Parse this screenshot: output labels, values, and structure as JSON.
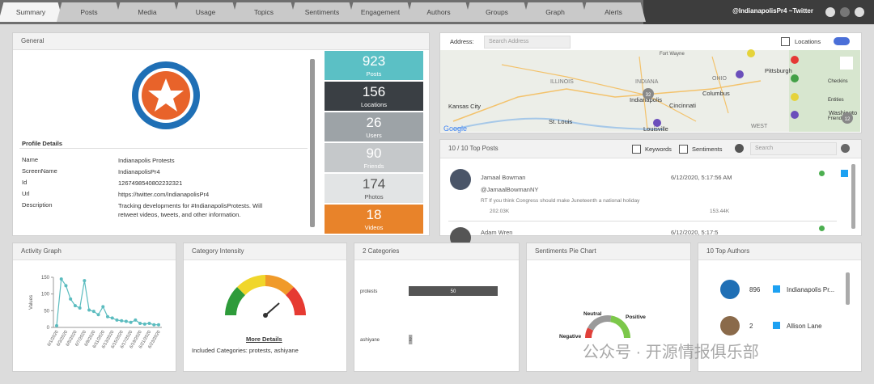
{
  "tabs": [
    "Summary",
    "Posts",
    "Media",
    "Usage",
    "Topics",
    "Sentiments",
    "Engagement",
    "Authors",
    "Groups",
    "Graph",
    "Alerts"
  ],
  "account": "@IndianapolisPr4 ~Twitter",
  "general": {
    "title": "General",
    "profile_heading": "Profile Details",
    "fields": [
      {
        "label": "Name",
        "value": "Indianapolis Protests"
      },
      {
        "label": "ScreenName",
        "value": "IndianapolisPr4"
      },
      {
        "label": "Id",
        "value": "1267498540802232321"
      },
      {
        "label": "Url",
        "value": "https://twitter.com/IndianapolisPr4"
      },
      {
        "label": "Description",
        "value": "Tracking developments for #IndianapolisProtests. Will retweet videos, tweets, and other information."
      }
    ]
  },
  "stats": [
    {
      "value": 923,
      "label": "Posts"
    },
    {
      "value": 156,
      "label": "Locations"
    },
    {
      "value": 26,
      "label": "Users"
    },
    {
      "value": 90,
      "label": "Friends"
    },
    {
      "value": 174,
      "label": "Photos"
    },
    {
      "value": 18,
      "label": "Videos"
    }
  ],
  "map": {
    "address_label": "Address:",
    "address_placeholder": "Search Address",
    "locations_label": "Locations",
    "places": [
      "ILLINOIS",
      "INDIANA",
      "OHIO",
      "Indianapolis",
      "Kansas City",
      "St. Louis",
      "Cincinnati",
      "Columbus",
      "Louisville",
      "Pittsburgh",
      "WEST",
      "Washingto",
      "Fort Wayne"
    ],
    "legend": [
      "Checkins",
      "Entities",
      "Friends"
    ],
    "clusters": [
      32,
      12
    ],
    "attribution": "Google"
  },
  "top_posts": {
    "title": "10 / 10 Top Posts",
    "keywords_label": "Keywords",
    "sentiments_label": "Sentiments",
    "search_placeholder": "Search",
    "posts": [
      {
        "author": "Jamaal Bowman",
        "date": "6/12/2020, 5:17:56 AM",
        "handle": "@JamaalBowmanNY",
        "text": "RT If you think Congress should make Juneteenth a national holiday",
        "likes": "202.03K",
        "shares": "153.44K"
      },
      {
        "author": "Adam Wren",
        "date": "6/12/2020, 5:17:5"
      }
    ]
  },
  "activity_graph": {
    "title": "Activity Graph",
    "type": "line",
    "y_label": "Values",
    "ylim": [
      0,
      150
    ],
    "yticks": [
      0,
      50,
      100,
      150
    ],
    "color": "#5bbcbf",
    "categories": [
      "6/1/2020",
      "6/2/2020",
      "6/3/2020",
      "6/4/2020",
      "6/5/2020",
      "6/6/2020",
      "6/7/2020",
      "6/8/2020",
      "6/9/2020",
      "6/10/2020",
      "6/11/2020",
      "6/12/2020",
      "6/13/2020",
      "6/14/2020",
      "6/15/2020",
      "6/16/2020",
      "6/17/2020",
      "6/18/2020",
      "6/19/2020",
      "6/20/2020",
      "6/21/2020",
      "6/22/2020",
      "6/23/2020"
    ],
    "values": [
      5,
      145,
      125,
      85,
      65,
      58,
      140,
      52,
      48,
      38,
      62,
      32,
      28,
      22,
      20,
      18,
      15,
      22,
      12,
      10,
      12,
      8,
      8
    ]
  },
  "category_intensity": {
    "title": "Category Intensity",
    "link": "More Details",
    "included": "Included Categories: protests, ashiyane"
  },
  "categories_chart": {
    "title": "2 Categories",
    "type": "bar",
    "categories": [
      "protests",
      "ashiyane"
    ],
    "values": [
      50,
      2
    ],
    "xlim": [
      0,
      50
    ],
    "color": "#555555"
  },
  "sentiments": {
    "title": "Sentiments Pie Chart",
    "type": "pie",
    "categories": [
      "Negative",
      "Neutral",
      "Positive"
    ],
    "values": [
      15,
      40,
      45
    ],
    "colors": [
      "#e0403a",
      "#9a9a9a",
      "#7cc84a"
    ]
  },
  "top_authors": {
    "title": "10 Top Authors",
    "authors": [
      {
        "count": 896,
        "name": "Indianapolis Pr..."
      },
      {
        "count": 2,
        "name": "Allison Lane"
      }
    ]
  },
  "watermark": "公众号 · 开源情报俱乐部"
}
